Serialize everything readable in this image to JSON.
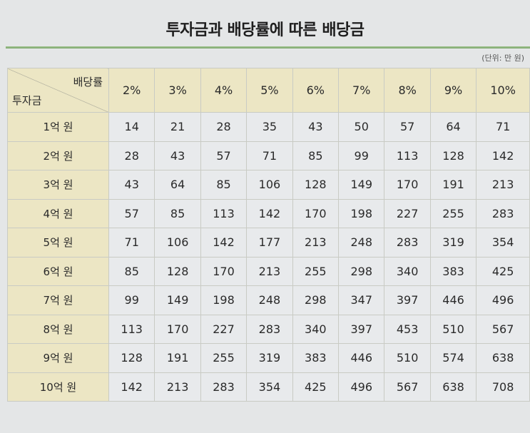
{
  "title": "투자금과 배당률에 따른 배당금",
  "unit": "(단위: 만 원)",
  "table": {
    "corner_col_label": "배당률",
    "corner_row_label": "투자금",
    "columns": [
      "2%",
      "3%",
      "4%",
      "5%",
      "6%",
      "7%",
      "8%",
      "9%",
      "10%"
    ],
    "rows": [
      {
        "label": "1억 원",
        "values": [
          "14",
          "21",
          "28",
          "35",
          "43",
          "50",
          "57",
          "64",
          "71"
        ]
      },
      {
        "label": "2억 원",
        "values": [
          "28",
          "43",
          "57",
          "71",
          "85",
          "99",
          "113",
          "128",
          "142"
        ]
      },
      {
        "label": "3억 원",
        "values": [
          "43",
          "64",
          "85",
          "106",
          "128",
          "149",
          "170",
          "191",
          "213"
        ]
      },
      {
        "label": "4억 원",
        "values": [
          "57",
          "85",
          "113",
          "142",
          "170",
          "198",
          "227",
          "255",
          "283"
        ]
      },
      {
        "label": "5억 원",
        "values": [
          "71",
          "106",
          "142",
          "177",
          "213",
          "248",
          "283",
          "319",
          "354"
        ]
      },
      {
        "label": "6억 원",
        "values": [
          "85",
          "128",
          "170",
          "213",
          "255",
          "298",
          "340",
          "383",
          "425"
        ]
      },
      {
        "label": "7억 원",
        "values": [
          "99",
          "149",
          "198",
          "248",
          "298",
          "347",
          "397",
          "446",
          "496"
        ]
      },
      {
        "label": "8억 원",
        "values": [
          "113",
          "170",
          "227",
          "283",
          "340",
          "397",
          "453",
          "510",
          "567"
        ]
      },
      {
        "label": "9억 원",
        "values": [
          "128",
          "191",
          "255",
          "319",
          "383",
          "446",
          "510",
          "574",
          "638"
        ]
      },
      {
        "label": "10억 원",
        "values": [
          "142",
          "213",
          "283",
          "354",
          "425",
          "496",
          "567",
          "638",
          "708"
        ]
      }
    ]
  },
  "colors": {
    "header_bg": "#ece6c4",
    "rule": "#8fb67c",
    "cell_bg": "#e8eaec"
  }
}
